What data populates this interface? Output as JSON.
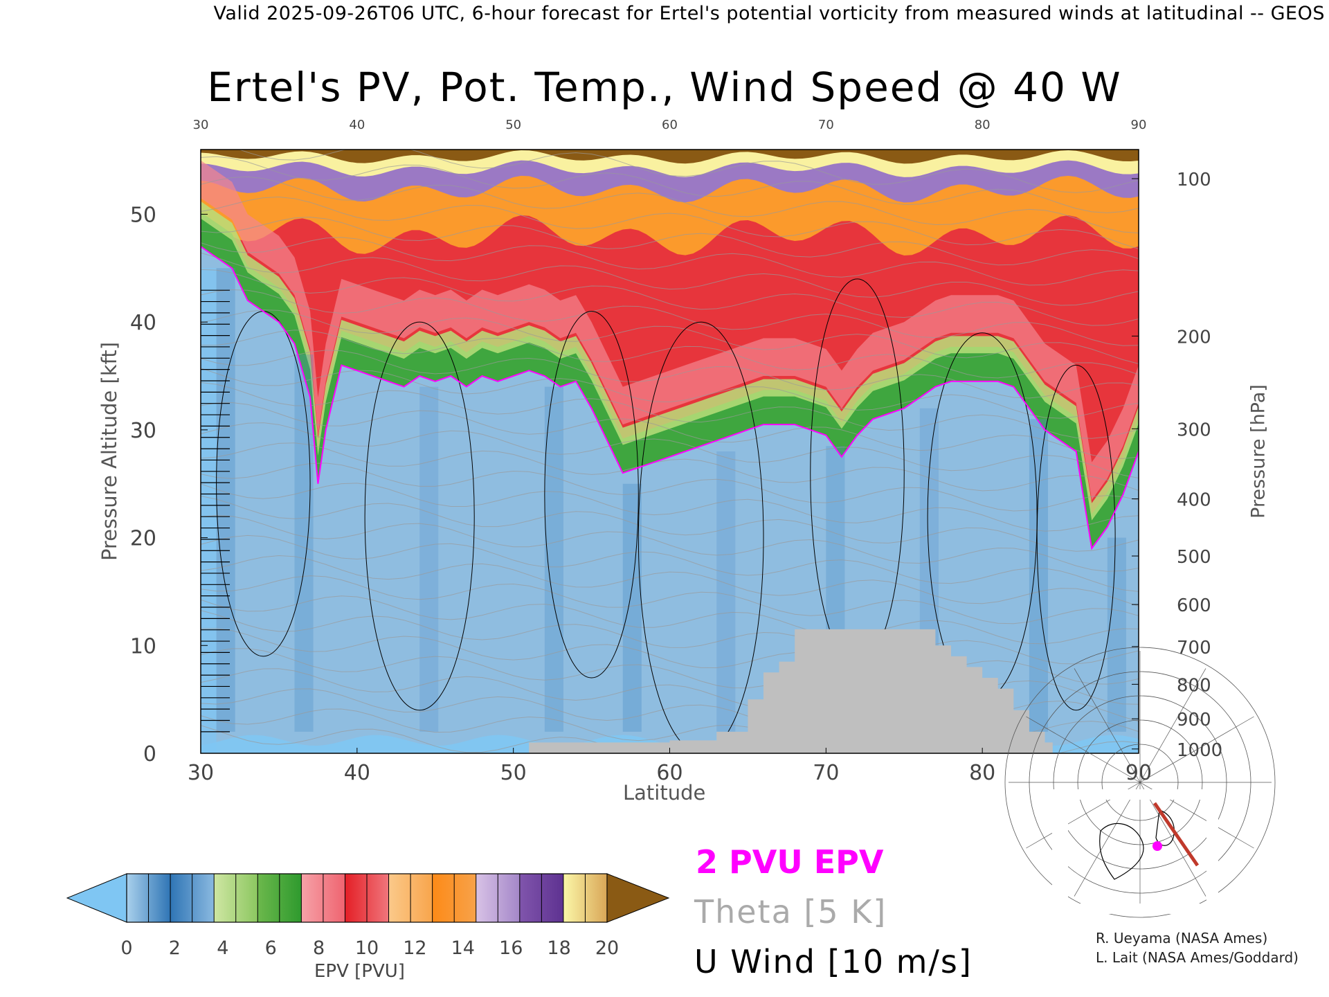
{
  "header": {
    "valid_text": "Valid 2025-09-26T06 UTC, 6-hour forecast for Ertel's potential vorticity from measured winds at latitudinal -- GEOS"
  },
  "chart_data": {
    "type": "heatmap",
    "title": "Ertel's PV, Pot. Temp., Wind Speed @ 40 W",
    "xlabel": "Latitude",
    "ylabel": "Pressure Altitude [kft]",
    "y2label": "Pressure [hPa]",
    "xlim": [
      30,
      90
    ],
    "ylim": [
      0,
      56
    ],
    "x_ticks": [
      "30",
      "40",
      "50",
      "60",
      "70",
      "80",
      "90"
    ],
    "y_ticks": [
      "0",
      "10",
      "20",
      "30",
      "40",
      "50"
    ],
    "pressure_ticks": [
      {
        "label": "100",
        "kft": 53.3
      },
      {
        "label": "200",
        "kft": 38.7
      },
      {
        "label": "300",
        "kft": 30.1
      },
      {
        "label": "400",
        "kft": 23.6
      },
      {
        "label": "500",
        "kft": 18.3
      },
      {
        "label": "600",
        "kft": 13.8
      },
      {
        "label": "700",
        "kft": 9.9
      },
      {
        "label": "800",
        "kft": 6.4
      },
      {
        "label": "900",
        "kft": 3.2
      },
      {
        "label": "1000",
        "kft": 0.4
      }
    ],
    "tropopause_2pvu_kft": {
      "lat": [
        30,
        31,
        32,
        33,
        34,
        35,
        36,
        37,
        37.5,
        38,
        39,
        40,
        41,
        42,
        43,
        44,
        45,
        46,
        47,
        48,
        49,
        50,
        51,
        52,
        53,
        54,
        55,
        56,
        57,
        58,
        59,
        60,
        61,
        62,
        63,
        64,
        65,
        66,
        67,
        68,
        69,
        70,
        71,
        72,
        73,
        74,
        75,
        76,
        77,
        78,
        79,
        80,
        81,
        82,
        83,
        84,
        85,
        86,
        87,
        88,
        89,
        90
      ],
      "kft": [
        47,
        46,
        45,
        42,
        41,
        40,
        38,
        33,
        25,
        30,
        36,
        35.5,
        35,
        34.5,
        34,
        35,
        34.5,
        35,
        34,
        35,
        34.5,
        35,
        35.5,
        35,
        34,
        34.5,
        32,
        29,
        26,
        26.5,
        27,
        27.5,
        28,
        28.5,
        29,
        29.5,
        30,
        30.5,
        30.5,
        30.5,
        30,
        29.5,
        27.5,
        29.5,
        31,
        31.5,
        32,
        33,
        34,
        34.5,
        34.5,
        34.5,
        34.5,
        34,
        32,
        30,
        29,
        28,
        19,
        21,
        24,
        28
      ]
    },
    "surface_mask_top_kft": {
      "lat": [
        51,
        60,
        63,
        65,
        66,
        67,
        68,
        69,
        70,
        71,
        72,
        73,
        74,
        75,
        76,
        77,
        78,
        79,
        80,
        81,
        82,
        83,
        84
      ],
      "kft": [
        1,
        1.2,
        2,
        5,
        7.5,
        8.5,
        11.5,
        11.5,
        11.5,
        11.5,
        11.5,
        11.5,
        11.5,
        11.5,
        11.5,
        10,
        9,
        8,
        7,
        6,
        4,
        2,
        1
      ]
    },
    "colorbar": {
      "label": "EPV [PVU]",
      "ticks": [
        "0",
        "2",
        "4",
        "6",
        "8",
        "10",
        "12",
        "14",
        "16",
        "18",
        "20"
      ],
      "colors": [
        [
          "#a9d0ec",
          "#2f75b5"
        ],
        [
          "#2f75b5",
          "#8ab9e0"
        ],
        [
          "#cfe6a3",
          "#8cc760"
        ],
        [
          "#6cb84c",
          "#2e9a2e"
        ],
        [
          "#f6a2a8",
          "#ef6470"
        ],
        [
          "#e41f26",
          "#f0767c"
        ],
        [
          "#fbc98a",
          "#f8a54c"
        ],
        [
          "#fd8a17",
          "#f7a24a"
        ],
        [
          "#d8c2e6",
          "#a487c9"
        ],
        [
          "#8055ac",
          "#5e3291"
        ],
        [
          "#fbf7a8",
          "#d9a657"
        ]
      ],
      "under_color": "#7fc6f3",
      "over_color": "#8a5a14"
    },
    "zone_colors": {
      "tropo_base": "#8fbde0",
      "tropo_dark": "#4a8cc8",
      "surface_light": "#7fc6f3",
      "green_band": "#3fa63f",
      "light_green": "#b9de7a",
      "pink": "#f3868e",
      "red": "#e7353c",
      "orange": "#fb9a2c",
      "purple": "#9b79c4",
      "brown": "#8a5a14",
      "yellow": "#f9f1a0",
      "mask_gray": "#bfbfbf",
      "pv_contour": "#ff00ff"
    }
  },
  "legend": {
    "pvu_label": "2 PVU EPV",
    "theta_label": "Theta [5 K]",
    "uwind_label": "U Wind [10 m/s]"
  },
  "credits": {
    "line1": "R. Ueyama (NASA Ames)",
    "line2": "L. Lait (NASA Ames/Goddard)"
  },
  "inset_map": {
    "marker_color": "#ff00ff",
    "track_color": "#c0392b"
  }
}
